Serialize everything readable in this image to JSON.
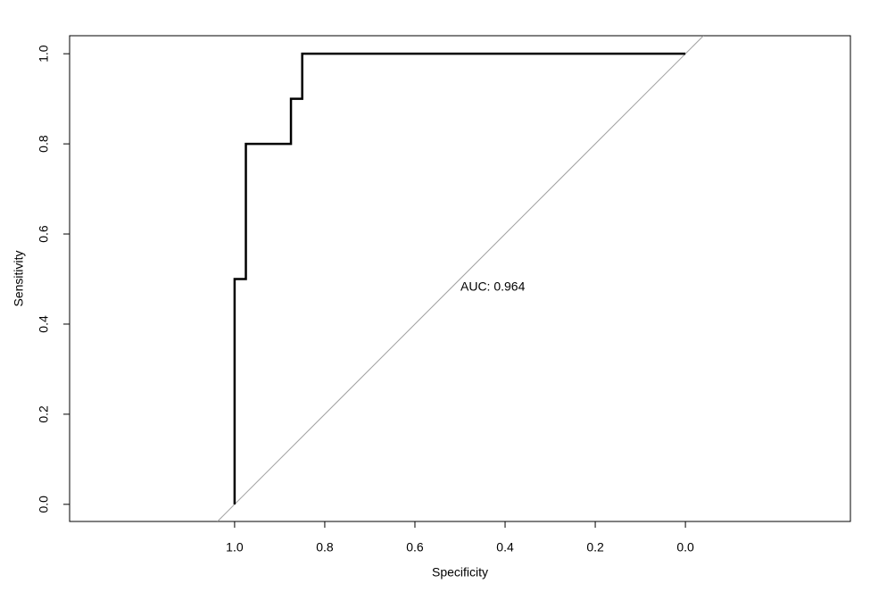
{
  "chart_data": {
    "type": "line",
    "x_label": "Specificity",
    "y_label": "Sensitivity",
    "annotation": "AUC: 0.964",
    "x": [
      1,
      1,
      0.975,
      0.975,
      0.875,
      0.875,
      0.85,
      0.85,
      0
    ],
    "values": [
      0,
      0.5,
      0.5,
      0.8,
      0.8,
      0.9,
      0.9,
      1,
      1
    ],
    "color": "#000000",
    "xlim": [
      1.366,
      -0.366
    ],
    "xticks": [
      {
        "value": 1,
        "label": "1.0"
      },
      {
        "value": 0.8,
        "label": "0.8"
      },
      {
        "value": 0.6,
        "label": "0.6"
      },
      {
        "value": 0.4,
        "label": "0.4"
      },
      {
        "value": 0.2,
        "label": "0.2"
      },
      {
        "value": 0,
        "label": "0.0"
      }
    ],
    "ylim": [
      -0.038,
      1.04
    ],
    "yticks": [
      {
        "value": 0,
        "label": "0.0"
      },
      {
        "value": 0.2,
        "label": "0.2"
      },
      {
        "value": 0.4,
        "label": "0.4"
      },
      {
        "value": 0.6,
        "label": "0.6"
      },
      {
        "value": 0.8,
        "label": "0.8"
      },
      {
        "value": 1,
        "label": "1.0"
      }
    ],
    "reference_line_color": "#a0a0a0"
  }
}
